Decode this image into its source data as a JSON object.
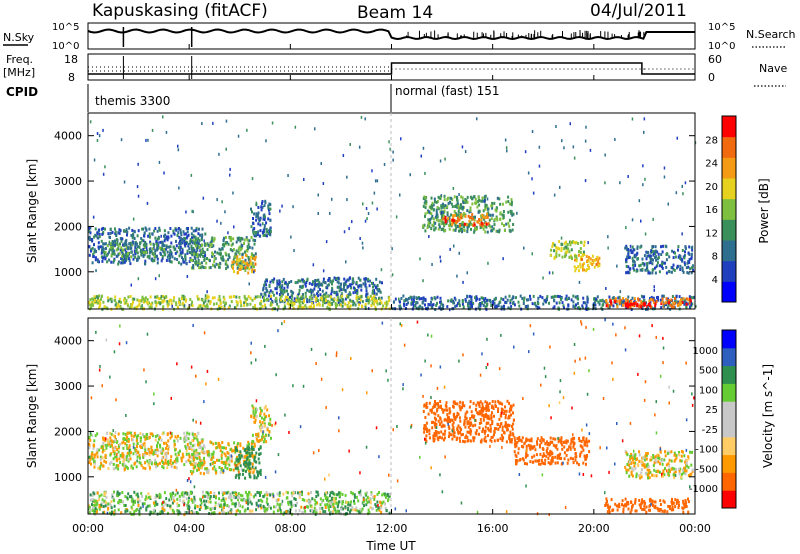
{
  "header": {
    "station": "Kapuskasing (fitACF)",
    "beam": "Beam 14",
    "date": "04/Jul/2011"
  },
  "top_panels": {
    "nsky_label": "N.Sky",
    "nsearch_label": "N.Search",
    "noise_ticks": [
      "10^5",
      "10^0"
    ],
    "freq_label_line1": "Freq.",
    "freq_label_line2": "[MHz]",
    "freq_ticks": [
      "18",
      "8"
    ],
    "nave_label": "Nave",
    "nave_ticks": [
      "60",
      "0"
    ],
    "cpid_label": "CPID",
    "cpid_segments": [
      {
        "label": "themis 3300",
        "start_hour": 0,
        "end_hour": 12
      },
      {
        "label": "normal (fast) 151",
        "start_hour": 12,
        "end_hour": 24
      }
    ]
  },
  "colors": {
    "power_scale": [
      "#0000ff",
      "#1f3fbf",
      "#2e6e8e",
      "#3a8f5a",
      "#7fbf3f",
      "#e6d21e",
      "#f59a14",
      "#f26a10",
      "#ff0000"
    ],
    "velocity_scale": [
      "#ff0000",
      "#ff6600",
      "#ff9900",
      "#ffcc66",
      "#c8c8c8",
      "#c8c8c8",
      "#66cc33",
      "#2f8f4f",
      "#2e5fbf",
      "#0000ff"
    ]
  },
  "chart_data": [
    {
      "type": "heatmap",
      "panel": "power",
      "ylabel": "Slant Range [km]",
      "ylim": [
        180,
        4500
      ],
      "y_ticks": [
        1000,
        2000,
        3000,
        4000
      ],
      "xlim": [
        0,
        24
      ],
      "x_ticks": [
        "00:00",
        "04:00",
        "08:00",
        "12:00",
        "16:00",
        "20:00",
        "00:00"
      ],
      "colorbar_label": "Power [dB]",
      "colorbar_ticks": [
        "4",
        "8",
        "12",
        "16",
        "20",
        "24",
        "28"
      ],
      "colorbar_range": [
        0,
        30
      ],
      "regions": [
        {
          "t0": 0.0,
          "t1": 4.6,
          "r0": 1200,
          "r1": 2000,
          "val": 8
        },
        {
          "t0": 0.6,
          "t1": 3.0,
          "r0": 1350,
          "r1": 1650,
          "val": 12
        },
        {
          "t0": 4.0,
          "t1": 6.6,
          "r0": 1100,
          "r1": 1800,
          "val": 12
        },
        {
          "t0": 5.6,
          "t1": 6.6,
          "r0": 1000,
          "r1": 1400,
          "val": 20
        },
        {
          "t0": 6.4,
          "t1": 7.2,
          "r0": 1800,
          "r1": 2600,
          "val": 8
        },
        {
          "t0": 6.8,
          "t1": 11.6,
          "r0": 350,
          "r1": 900,
          "val": 8
        },
        {
          "t0": 0.0,
          "t1": 11.9,
          "r0": 200,
          "r1": 500,
          "val": 16
        },
        {
          "t0": 12.0,
          "t1": 24.0,
          "r0": 200,
          "r1": 500,
          "val": 8
        },
        {
          "t0": 13.2,
          "t1": 16.8,
          "r0": 1900,
          "r1": 2700,
          "val": 12
        },
        {
          "t0": 14.0,
          "t1": 15.8,
          "r0": 2050,
          "r1": 2300,
          "val": 24
        },
        {
          "t0": 18.2,
          "t1": 19.6,
          "r0": 1300,
          "r1": 1700,
          "val": 16
        },
        {
          "t0": 19.2,
          "t1": 20.2,
          "r0": 1050,
          "r1": 1400,
          "val": 20
        },
        {
          "t0": 21.2,
          "t1": 23.9,
          "r0": 1000,
          "r1": 1600,
          "val": 8
        },
        {
          "t0": 20.4,
          "t1": 23.8,
          "r0": 250,
          "r1": 450,
          "val": 24
        },
        {
          "t0": 21.2,
          "t1": 22.2,
          "r0": 250,
          "r1": 350,
          "val": 28
        }
      ]
    },
    {
      "type": "heatmap",
      "panel": "velocity",
      "ylabel": "Slant Range [km]",
      "ylim": [
        180,
        4500
      ],
      "y_ticks": [
        1000,
        2000,
        3000,
        4000
      ],
      "xlim": [
        0,
        24
      ],
      "x_ticks": [
        "00:00",
        "04:00",
        "08:00",
        "12:00",
        "16:00",
        "20:00",
        "00:00"
      ],
      "xlabel": "Time UT",
      "colorbar_label": "Velocity [m s^-1]",
      "colorbar_ticks": [
        "1000",
        "500",
        "100",
        "25",
        "-25",
        "-100",
        "-500",
        "-1000"
      ],
      "colorbar_range": [
        -1200,
        1200
      ],
      "regions": [
        {
          "t0": 0.0,
          "t1": 4.6,
          "r0": 1200,
          "r1": 2000,
          "val": 0
        },
        {
          "t0": 4.0,
          "t1": 6.6,
          "r0": 1100,
          "r1": 1800,
          "val": 0
        },
        {
          "t0": 5.8,
          "t1": 6.8,
          "r0": 1000,
          "r1": 1700,
          "val": 200
        },
        {
          "t0": 6.4,
          "t1": 7.2,
          "r0": 1800,
          "r1": 2600,
          "val": 0
        },
        {
          "t0": 0.0,
          "t1": 11.9,
          "r0": 200,
          "r1": 700,
          "val": 60
        },
        {
          "t0": 13.2,
          "t1": 16.8,
          "r0": 1800,
          "r1": 2700,
          "val": -400
        },
        {
          "t0": 16.8,
          "t1": 19.8,
          "r0": 1300,
          "r1": 1900,
          "val": -300
        },
        {
          "t0": 21.2,
          "t1": 23.9,
          "r0": 1000,
          "r1": 1600,
          "val": 0
        },
        {
          "t0": 20.4,
          "t1": 23.8,
          "r0": 250,
          "r1": 550,
          "val": -400
        }
      ]
    }
  ]
}
